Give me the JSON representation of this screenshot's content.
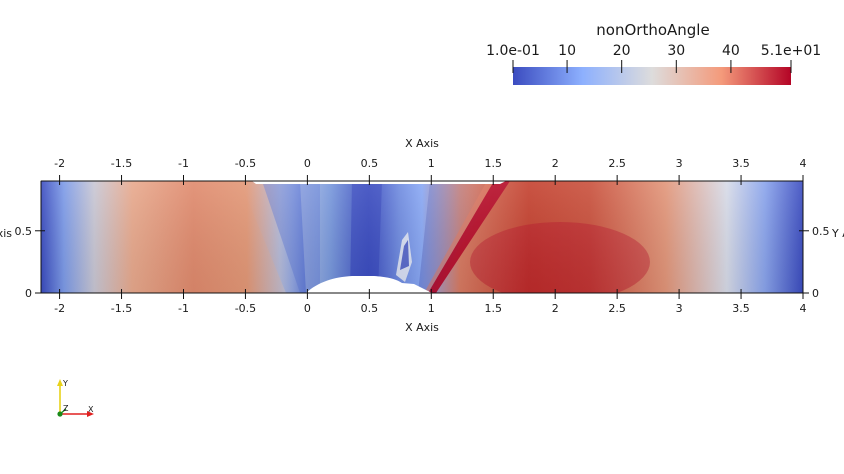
{
  "colorbar": {
    "title": "nonOrthoAngle",
    "tick_labels": [
      "1.0e-01",
      "10",
      "20",
      "30",
      "40",
      "5.1e+01"
    ],
    "tick_values": [
      0.1,
      10,
      20,
      30,
      40,
      51
    ],
    "range": [
      0.1,
      51
    ],
    "colors": [
      "#3b4cc0",
      "#8db0fe",
      "#dddcdc",
      "#f49a7b",
      "#b40426"
    ]
  },
  "axes": {
    "x_title": "X Axis",
    "y_title": "Y Axis",
    "x_ticks": [
      "-2",
      "-1.5",
      "-1",
      "-0.5",
      "0",
      "0.5",
      "1",
      "1.5",
      "2",
      "2.5",
      "3",
      "3.5",
      "4"
    ],
    "x_tick_values": [
      -2,
      -1.5,
      -1,
      -0.5,
      0,
      0.5,
      1,
      1.5,
      2,
      2.5,
      3,
      3.5,
      4
    ],
    "y_ticks": [
      "0",
      "0.5"
    ],
    "y_tick_values": [
      0,
      0.5
    ],
    "x_range": [
      -2.15,
      4
    ],
    "y_range": [
      0,
      0.9
    ]
  },
  "orientation": {
    "x_label": "X",
    "y_label": "Y",
    "z_label": "Z",
    "x_color": "#e02020",
    "y_color": "#e8d21a",
    "z_color": "#1a8a1a"
  }
}
